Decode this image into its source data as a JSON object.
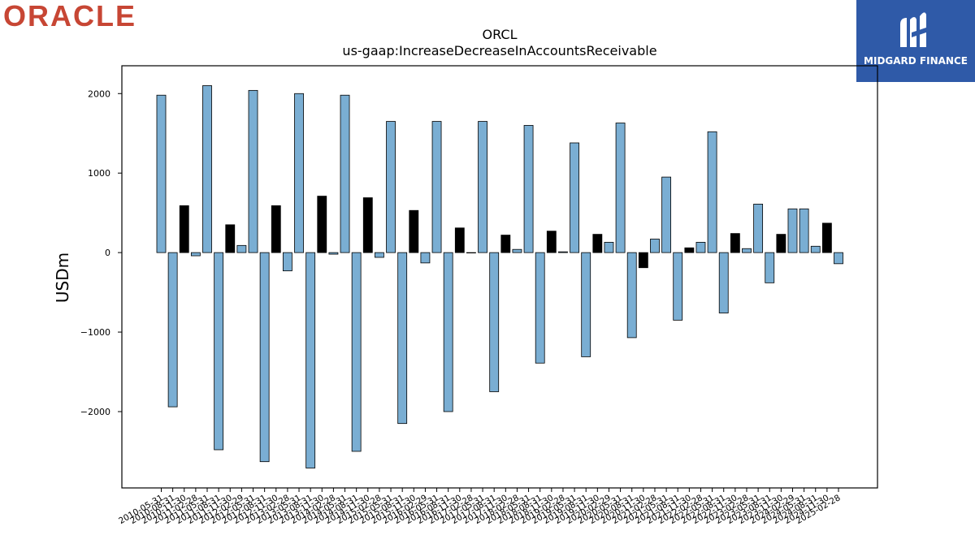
{
  "logos": {
    "left_brand": "ORACLE",
    "right_brand": "MIDGARD FINANCE",
    "left_color": "#c74634",
    "right_bg_color": "#2f5aa8"
  },
  "chart_data": {
    "type": "bar",
    "title": "ORCL",
    "subtitle": "us-gaap:IncreaseDecreaseInAccountsReceivable",
    "ylabel": "USDm",
    "xlabel": "",
    "ylim": [
      -2960,
      2350
    ],
    "yticks": [
      -2000,
      -1000,
      0,
      1000,
      2000
    ],
    "ytick_labels": [
      "−2000",
      "−1000",
      "0",
      "1000",
      "2000"
    ],
    "grid": false,
    "legend": "none",
    "colors": {
      "default": "#7aaed3",
      "alternate": "#000000",
      "edge": "#000000"
    },
    "categories": [
      "2010-05-31",
      "2010-08-31",
      "2010-11-30",
      "2011-02-28",
      "2011-05-31",
      "2011-08-31",
      "2011-11-30",
      "2012-02-29",
      "2012-05-31",
      "2012-08-31",
      "2012-11-30",
      "2013-02-28",
      "2013-05-31",
      "2013-08-31",
      "2013-11-30",
      "2014-02-28",
      "2014-05-31",
      "2014-08-31",
      "2014-11-30",
      "2015-02-28",
      "2015-05-31",
      "2015-08-31",
      "2015-11-30",
      "2016-02-29",
      "2016-05-31",
      "2016-08-31",
      "2016-11-30",
      "2017-02-28",
      "2017-05-31",
      "2017-08-31",
      "2017-11-30",
      "2018-02-28",
      "2018-05-31",
      "2018-08-31",
      "2018-11-30",
      "2019-02-28",
      "2019-05-31",
      "2019-08-31",
      "2019-11-30",
      "2020-02-29",
      "2020-05-31",
      "2020-08-31",
      "2020-11-30",
      "2021-02-28",
      "2021-05-31",
      "2021-08-31",
      "2021-11-30",
      "2022-02-28",
      "2022-05-31",
      "2022-08-31",
      "2022-11-30",
      "2023-02-28",
      "2023-05-31",
      "2023-08-31",
      "2023-11-30",
      "2024-02-29",
      "2024-05-31",
      "2024-08-31",
      "2024-11-30",
      "2025-02-28"
    ],
    "values": [
      1980,
      -1940,
      590,
      -40,
      2100,
      -2480,
      350,
      90,
      2040,
      -2630,
      590,
      -230,
      2000,
      -2710,
      710,
      -20,
      1980,
      -2500,
      690,
      -60,
      1650,
      -2150,
      530,
      -130,
      1650,
      -2000,
      310,
      0,
      1650,
      -1750,
      220,
      40,
      1600,
      -1390,
      270,
      10,
      1380,
      -1310,
      230,
      130,
      1630,
      -1070,
      -190,
      170,
      950,
      -850,
      60,
      130,
      1520,
      -760,
      240,
      50,
      610,
      -380,
      230,
      550,
      550,
      80,
      370,
      -140
    ],
    "bar_colors": [
      "#7aaed3",
      "#7aaed3",
      "#000000",
      "#7aaed3",
      "#7aaed3",
      "#7aaed3",
      "#000000",
      "#7aaed3",
      "#7aaed3",
      "#7aaed3",
      "#000000",
      "#7aaed3",
      "#7aaed3",
      "#7aaed3",
      "#000000",
      "#7aaed3",
      "#7aaed3",
      "#7aaed3",
      "#000000",
      "#7aaed3",
      "#7aaed3",
      "#7aaed3",
      "#000000",
      "#7aaed3",
      "#7aaed3",
      "#7aaed3",
      "#000000",
      "#7aaed3",
      "#7aaed3",
      "#7aaed3",
      "#000000",
      "#7aaed3",
      "#7aaed3",
      "#7aaed3",
      "#000000",
      "#7aaed3",
      "#7aaed3",
      "#7aaed3",
      "#000000",
      "#7aaed3",
      "#7aaed3",
      "#7aaed3",
      "#000000",
      "#7aaed3",
      "#7aaed3",
      "#7aaed3",
      "#000000",
      "#7aaed3",
      "#7aaed3",
      "#7aaed3",
      "#000000",
      "#7aaed3",
      "#7aaed3",
      "#7aaed3",
      "#000000",
      "#7aaed3",
      "#7aaed3",
      "#7aaed3",
      "#000000",
      "#7aaed3"
    ]
  }
}
